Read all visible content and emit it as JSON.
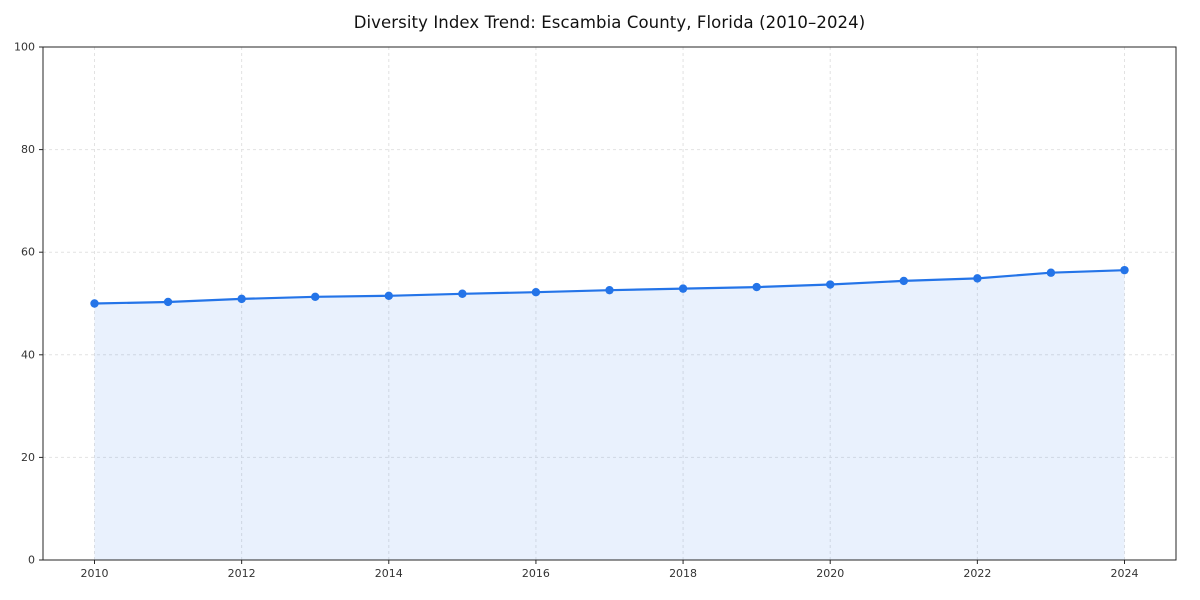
{
  "chart_data": {
    "type": "area",
    "title": "Diversity Index Trend: Escambia County, Florida (2010–2024)",
    "xlabel": "",
    "ylabel": "",
    "x": [
      2010,
      2011,
      2012,
      2013,
      2014,
      2015,
      2016,
      2017,
      2018,
      2019,
      2020,
      2021,
      2022,
      2023,
      2024
    ],
    "values": [
      50.0,
      50.3,
      50.9,
      51.3,
      51.5,
      51.9,
      52.2,
      52.6,
      52.9,
      53.2,
      53.7,
      54.4,
      54.9,
      56.0,
      56.5
    ],
    "series_name": "Diversity Index",
    "xticks": [
      2010,
      2012,
      2014,
      2016,
      2018,
      2020,
      2022,
      2024
    ],
    "yticks": [
      0,
      20,
      40,
      60,
      80,
      100
    ],
    "ylim": [
      0,
      100
    ],
    "grid": true,
    "grid_style": "dashed",
    "legend": "none",
    "marker": "circle",
    "colors": {
      "line": "#2474e8",
      "fill": "#e5eefc",
      "grid": "#e2e2e2",
      "axis": "#262626",
      "tick_label": "#333333",
      "title": "#111111",
      "background": "#ffffff"
    }
  }
}
